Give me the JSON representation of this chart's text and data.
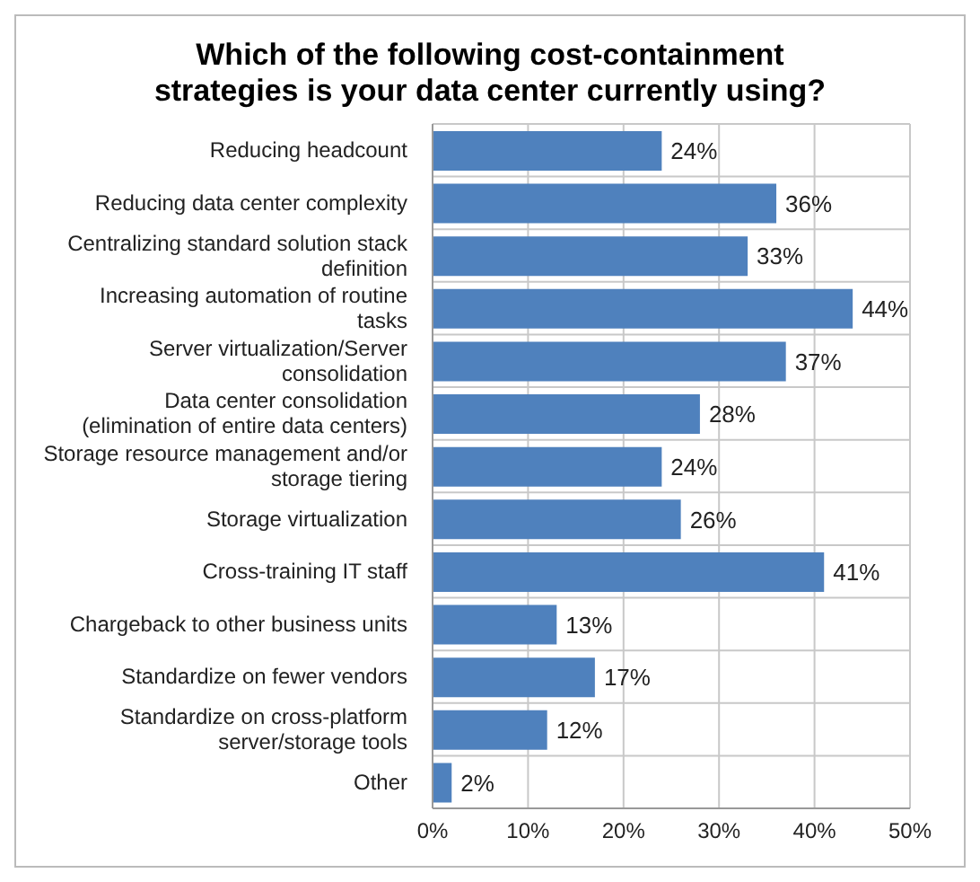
{
  "chart_data": {
    "type": "bar",
    "orientation": "horizontal",
    "title": "Which of the following cost-containment strategies is your data center currently using?",
    "categories": [
      "Reducing headcount",
      "Reducing data center complexity",
      "Centralizing standard solution stack definition",
      "Increasing automation of routine tasks",
      "Server virtualization/Server consolidation",
      "Data center consolidation (elimination of entire data centers)",
      "Storage resource management and/or storage tiering",
      "Storage virtualization",
      "Cross-training IT staff",
      "Chargeback to other business units",
      "Standardize on fewer vendors",
      "Standardize on cross-platform server/storage tools",
      "Other"
    ],
    "values": [
      24,
      36,
      33,
      44,
      37,
      28,
      24,
      26,
      41,
      13,
      17,
      12,
      2
    ],
    "value_labels": [
      "24%",
      "36%",
      "33%",
      "44%",
      "37%",
      "28%",
      "24%",
      "26%",
      "41%",
      "13%",
      "17%",
      "12%",
      "2%"
    ],
    "color": "#4f81bd",
    "xlim": [
      0,
      50
    ],
    "xticks": [
      {
        "value": 0,
        "label": "0%"
      },
      {
        "value": 10,
        "label": "10%"
      },
      {
        "value": 20,
        "label": "20%"
      },
      {
        "value": 30,
        "label": "30%"
      },
      {
        "value": 40,
        "label": "40%"
      },
      {
        "value": 50,
        "label": "50%"
      }
    ],
    "grid": true,
    "legend": false
  }
}
